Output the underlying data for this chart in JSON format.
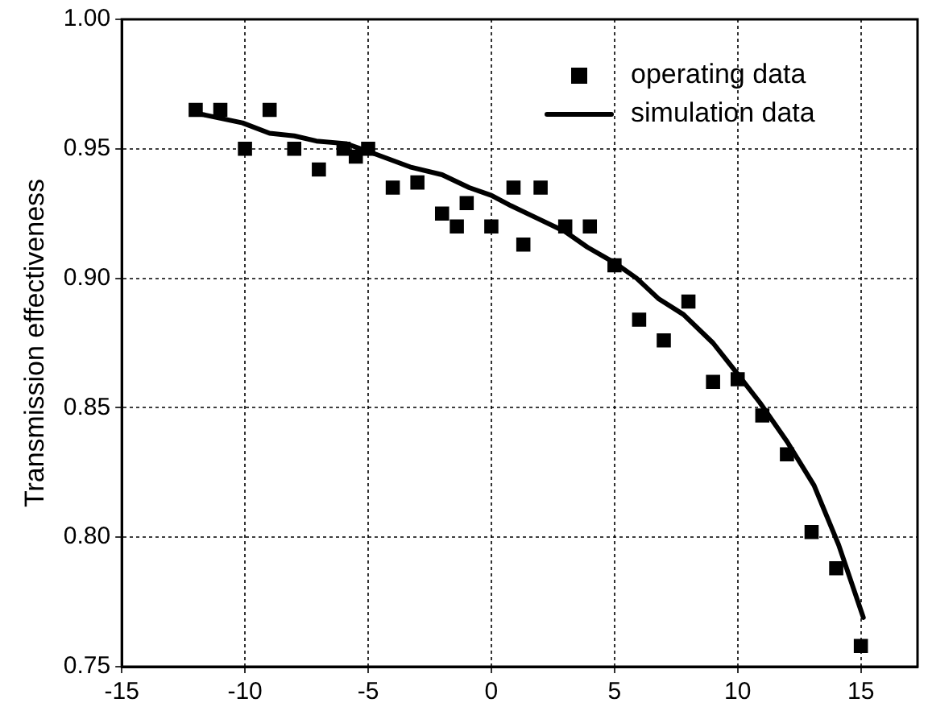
{
  "chart_data": {
    "type": "scatter",
    "ylabel": "Transmission effectiveness",
    "xlim": [
      -15,
      17.3
    ],
    "xticks": [
      -15,
      -10,
      -5,
      0,
      5,
      10,
      15
    ],
    "ylim": [
      0.75,
      1.0
    ],
    "yticks": [
      {
        "value": 0.75,
        "label": "0.75"
      },
      {
        "value": 0.8,
        "label": "0.80"
      },
      {
        "value": 0.85,
        "label": "0.85"
      },
      {
        "value": 0.9,
        "label": "0.90"
      },
      {
        "value": 0.95,
        "label": "0.95"
      },
      {
        "value": 1.0,
        "label": "1.00"
      }
    ],
    "grid": true,
    "legend": "top right",
    "series": [
      {
        "name": "operating data",
        "marker": "square",
        "color": "#000000",
        "x": [
          -12,
          -11,
          -10,
          -9,
          -8,
          -7,
          -6,
          -5.5,
          -5,
          -4,
          -3,
          -2,
          -1.4,
          -1,
          0,
          0.9,
          1.3,
          2,
          3,
          4,
          5,
          6,
          7,
          8,
          9,
          10,
          11,
          12,
          13,
          14,
          15
        ],
        "values": [
          0.965,
          0.965,
          0.95,
          0.965,
          0.95,
          0.942,
          0.95,
          0.947,
          0.95,
          0.935,
          0.937,
          0.925,
          0.92,
          0.929,
          0.92,
          0.935,
          0.913,
          0.935,
          0.92,
          0.92,
          0.905,
          0.884,
          0.876,
          0.891,
          0.86,
          0.861,
          0.847,
          0.832,
          0.802,
          0.788,
          0.758
        ]
      },
      {
        "name": "simulation data",
        "type": "line",
        "marker": "none",
        "line_style": "solid",
        "color": "#000000",
        "x": [
          -11.85,
          -10.1,
          -9,
          -8,
          -7.1,
          -5.9,
          -5,
          -3.3,
          -2,
          -0.9,
          0,
          0.8,
          1.9,
          3,
          3.9,
          5,
          5.9,
          6.8,
          7.8,
          9,
          10,
          10.9,
          12,
          13.1,
          14.1,
          15.1
        ],
        "values": [
          0.9635,
          0.96,
          0.956,
          0.955,
          0.953,
          0.952,
          0.949,
          0.943,
          0.94,
          0.935,
          0.932,
          0.928,
          0.923,
          0.918,
          0.912,
          0.906,
          0.9,
          0.892,
          0.886,
          0.875,
          0.863,
          0.852,
          0.837,
          0.82,
          0.797,
          0.769
        ]
      }
    ]
  }
}
